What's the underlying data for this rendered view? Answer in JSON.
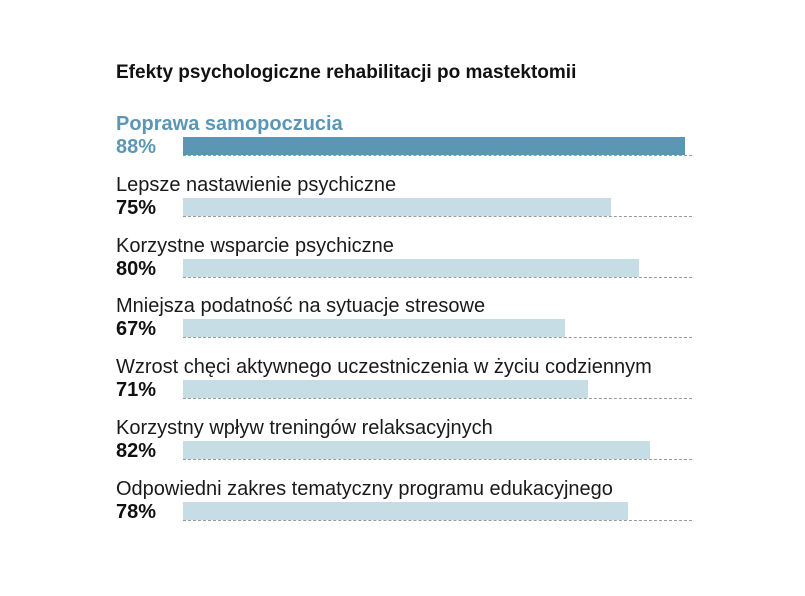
{
  "chart_data": {
    "type": "bar",
    "orientation": "horizontal",
    "title": "Efekty psychologiczne rehabilitacji po mastektomii",
    "value_suffix": "%",
    "xlim": [
      0,
      100
    ],
    "grid": false,
    "highlight_index": 0,
    "colors": {
      "highlight": "#5b97b5",
      "default": "#c6dde6",
      "track": "#9a9a9a"
    },
    "categories": [
      "Poprawa samopoczucia",
      "Lepsze nastawienie psychiczne",
      "Korzystne wsparcie psychiczne",
      "Mniejsza podatność na sytuacje stresowe",
      "Wzrost chęci aktywnego uczestniczenia w życiu codziennym",
      "Korzystny wpływ treningów relaksacyjnych",
      "Odpowiedni zakres tematyczny programu edukacyjnego"
    ],
    "values": [
      88,
      75,
      80,
      67,
      71,
      82,
      78
    ],
    "value_labels": [
      "88%",
      "75%",
      "80%",
      "67%",
      "71%",
      "82%",
      "78%"
    ]
  }
}
